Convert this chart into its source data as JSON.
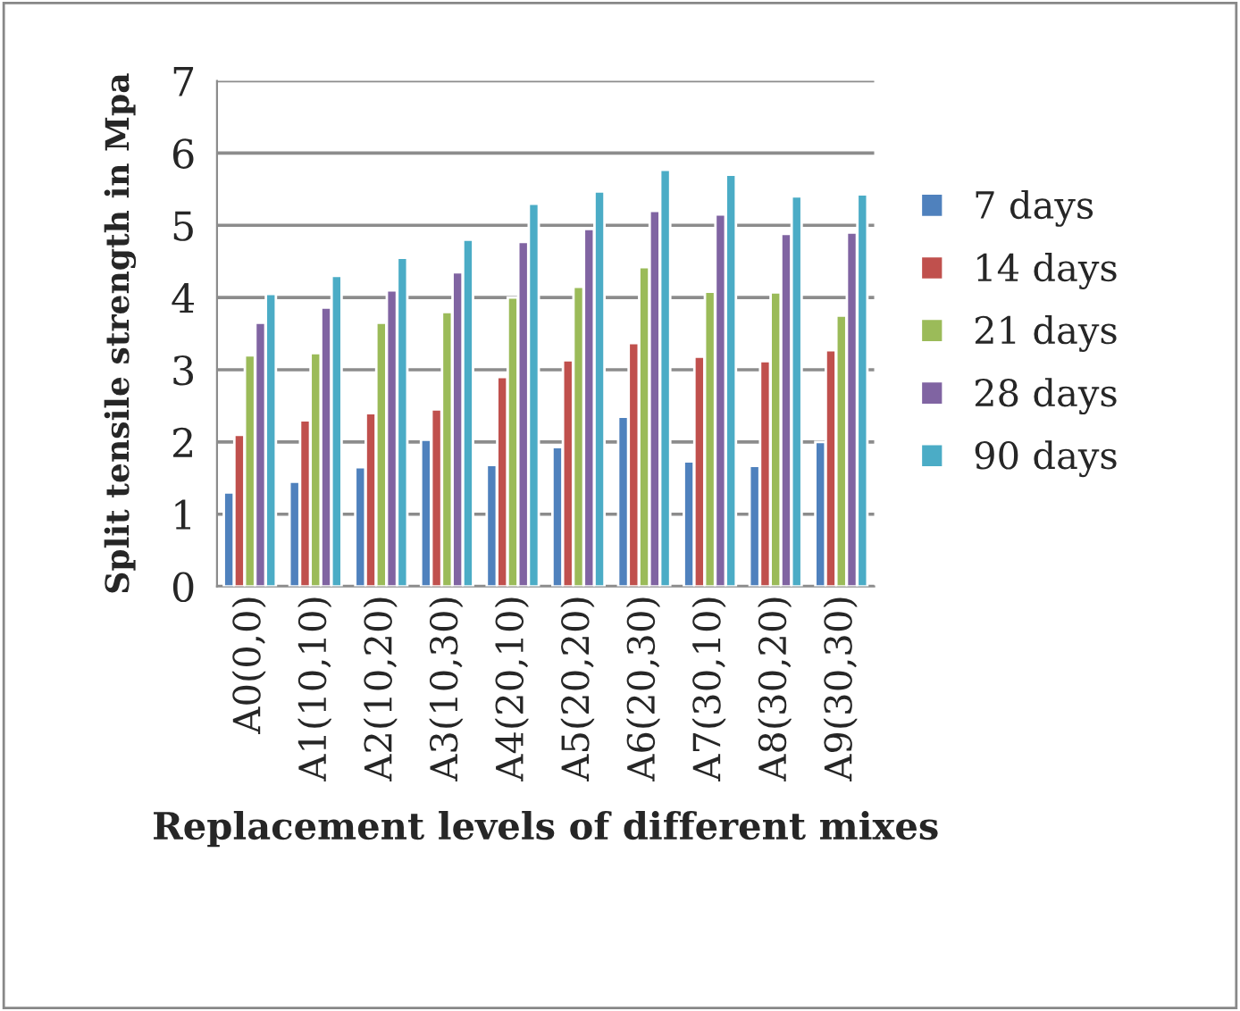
{
  "chart_data": {
    "type": "bar",
    "xlabel": "Replacement levels of different mixes",
    "ylabel": "Split tensile strength in Mpa",
    "categories": [
      "A0(0,0)",
      "A1(10,10)",
      "A2(10,20)",
      "A3(10,30)",
      "A4(20,10)",
      "A5(20,20)",
      "A6(20,30)",
      "A7(30,10)",
      "A8(30,20)",
      "A9(30,30)"
    ],
    "series": [
      {
        "name": "7 days",
        "color": "#4f81bd",
        "values": [
          1.3,
          1.45,
          1.65,
          2.03,
          1.68,
          1.93,
          2.35,
          1.73,
          1.67,
          2.0
        ]
      },
      {
        "name": "14 days",
        "color": "#c0504d",
        "values": [
          2.1,
          2.3,
          2.4,
          2.45,
          2.9,
          3.13,
          3.37,
          3.18,
          3.12,
          3.27
        ]
      },
      {
        "name": "21 days",
        "color": "#9bbb59",
        "values": [
          3.2,
          3.23,
          3.65,
          3.8,
          4.0,
          4.15,
          4.42,
          4.08,
          4.07,
          3.75
        ]
      },
      {
        "name": "28 days",
        "color": "#8064a2",
        "values": [
          3.65,
          3.86,
          4.1,
          4.35,
          4.77,
          4.95,
          5.2,
          5.15,
          4.88,
          4.9
        ]
      },
      {
        "name": "90 days",
        "color": "#4bacc6",
        "values": [
          4.05,
          4.3,
          4.55,
          4.8,
          5.3,
          5.47,
          5.77,
          5.7,
          5.4,
          5.43
        ]
      }
    ],
    "ylim": [
      0,
      7
    ],
    "yticks": [
      0,
      1,
      2,
      3,
      4,
      5,
      6,
      7
    ],
    "grid": "y",
    "legend": "right"
  }
}
